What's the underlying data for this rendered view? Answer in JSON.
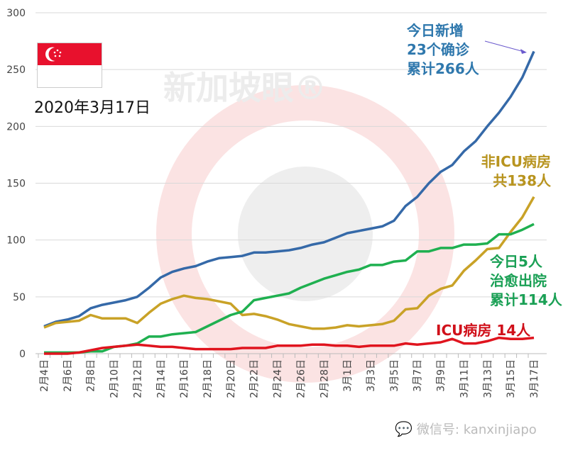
{
  "chart_data": {
    "type": "line",
    "title": "",
    "xlabel": "",
    "ylabel": "",
    "ylim": [
      0,
      300
    ],
    "yticks": [
      0,
      50,
      100,
      150,
      200,
      250,
      300
    ],
    "grid": "horizontal",
    "x": [
      "2月4日",
      "2月5日",
      "2月6日",
      "2月7日",
      "2月8日",
      "2月9日",
      "2月10日",
      "2月11日",
      "2月12日",
      "2月13日",
      "2月14日",
      "2月15日",
      "2月16日",
      "2月17日",
      "2月18日",
      "2月19日",
      "2月20日",
      "2月21日",
      "2月22日",
      "2月23日",
      "2月24日",
      "2月25日",
      "2月26日",
      "2月27日",
      "2月28日",
      "2月29日",
      "3月1日",
      "3月2日",
      "3月3日",
      "3月4日",
      "3月5日",
      "3月6日",
      "3月7日",
      "3月8日",
      "3月9日",
      "3月10日",
      "3月11日",
      "3月12日",
      "3月13日",
      "3月14日",
      "3月15日",
      "3月16日",
      "3月17日"
    ],
    "x_tick_labels": [
      "2月4日",
      "2月6日",
      "2月8日",
      "2月10日",
      "2月12日",
      "2月14日",
      "2月16日",
      "2月18日",
      "2月20日",
      "2月22日",
      "2月24日",
      "2月26日",
      "2月28日",
      "3月1日",
      "3月3日",
      "3月5日",
      "3月7日",
      "3月9日",
      "3月11日",
      "3月13日",
      "3月15日",
      "3月17日"
    ],
    "series": [
      {
        "key": "confirmed",
        "color": "#3569a8",
        "values": [
          24,
          28,
          30,
          33,
          40,
          43,
          45,
          47,
          50,
          58,
          67,
          72,
          75,
          77,
          81,
          84,
          85,
          86,
          89,
          89,
          90,
          91,
          93,
          96,
          98,
          102,
          106,
          108,
          110,
          112,
          117,
          130,
          138,
          150,
          160,
          166,
          178,
          187,
          200,
          212,
          226,
          243,
          266
        ]
      },
      {
        "key": "non_icu",
        "color": "#c9a227",
        "values": [
          23,
          27,
          28,
          29,
          34,
          31,
          31,
          31,
          27,
          36,
          44,
          48,
          51,
          49,
          48,
          46,
          44,
          34,
          35,
          33,
          30,
          26,
          24,
          22,
          22,
          23,
          25,
          24,
          25,
          26,
          29,
          39,
          40,
          51,
          57,
          60,
          73,
          82,
          92,
          93,
          107,
          120,
          138
        ]
      },
      {
        "key": "discharged",
        "color": "#1fb050",
        "values": [
          1,
          1,
          1,
          1,
          2,
          2,
          6,
          7,
          9,
          15,
          15,
          17,
          18,
          19,
          24,
          29,
          34,
          37,
          47,
          49,
          51,
          53,
          58,
          62,
          66,
          69,
          72,
          74,
          78,
          78,
          81,
          82,
          90,
          90,
          93,
          93,
          96,
          96,
          97,
          105,
          105,
          109,
          114
        ]
      },
      {
        "key": "icu",
        "color": "#e0141e",
        "values": [
          0,
          0,
          0,
          1,
          3,
          5,
          6,
          7,
          8,
          7,
          6,
          6,
          5,
          4,
          4,
          4,
          4,
          5,
          5,
          5,
          7,
          7,
          7,
          8,
          8,
          7,
          7,
          6,
          7,
          7,
          7,
          9,
          8,
          9,
          10,
          13,
          9,
          9,
          11,
          14,
          13,
          13,
          14
        ]
      }
    ],
    "annotations": {
      "confirmed": [
        "今日新增",
        "23个确诊",
        "累计266人"
      ],
      "non_icu": [
        "非ICU病房",
        "共138人"
      ],
      "discharged": [
        "今日5人",
        "治愈出院",
        "累计114人"
      ],
      "icu": [
        "ICU病房 14人"
      ]
    },
    "annotation_colors": {
      "confirmed": "#2f78ad",
      "non_icu": "#b8941f",
      "discharged": "#1aa055",
      "icu": "#d0101a"
    }
  },
  "date_label": "2020年3月17日",
  "watermark": "新加坡眼®",
  "footer": {
    "icon": "wechat-icon",
    "text": "微信号: kanxinjiapo"
  }
}
